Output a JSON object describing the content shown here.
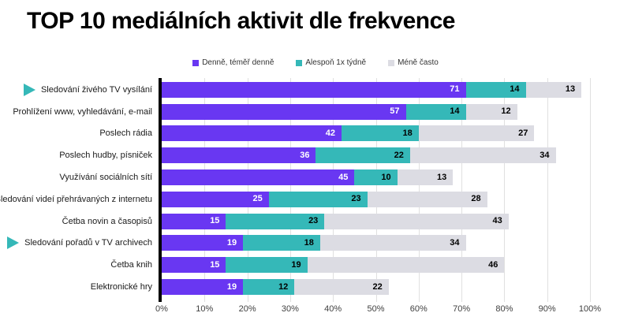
{
  "title": "TOP 10 mediálních aktivit dle frekvence",
  "legend": [
    {
      "label": "Denně, téměř denně",
      "color": "#6937f2"
    },
    {
      "label": "Alespoň 1x týdně",
      "color": "#35b8b8"
    },
    {
      "label": "Méně často",
      "color": "#dcdce3"
    }
  ],
  "colors": {
    "purple": "#6937f2",
    "teal": "#35b8b8",
    "gray": "#dcdce3",
    "axis_line": "#000000",
    "gridline": "#e0e0e0"
  },
  "chart_data": {
    "type": "bar",
    "orientation": "horizontal",
    "stacked": true,
    "title": "TOP 10 mediálních aktivit dle frekvence",
    "categories": [
      "Sledování živého TV vysílání",
      "Prohlížení www, vyhledávání, e-mail",
      "Poslech rádia",
      "Poslech hudby, písniček",
      "Využívání sociálních sítí",
      "Sledování videí přehrávaných z internetu",
      "Četba novin a časopisů",
      "Sledování pořadů v TV archivech",
      "Četba knih",
      "Elektronické hry"
    ],
    "category_markers": [
      true,
      false,
      false,
      false,
      false,
      true,
      false,
      true,
      false,
      false
    ],
    "series": [
      {
        "name": "Denně, téměř denně",
        "color": "#6937f2",
        "text_color": "#ffffff",
        "values": [
          71,
          57,
          42,
          36,
          45,
          25,
          15,
          19,
          15,
          19
        ]
      },
      {
        "name": "Alespoň 1x týdně",
        "color": "#35b8b8",
        "text_color": "#000000",
        "values": [
          14,
          14,
          18,
          22,
          10,
          23,
          23,
          18,
          19,
          12
        ]
      },
      {
        "name": "Méně často",
        "color": "#dcdce3",
        "text_color": "#000000",
        "values": [
          13,
          12,
          27,
          34,
          13,
          28,
          43,
          34,
          46,
          22
        ]
      }
    ],
    "x_ticks": [
      "0%",
      "10%",
      "20%",
      "30%",
      "40%",
      "50%",
      "60%",
      "70%",
      "80%",
      "90%",
      "100%"
    ],
    "xlim": [
      0,
      100
    ],
    "grid": true,
    "legend_position": "top"
  }
}
